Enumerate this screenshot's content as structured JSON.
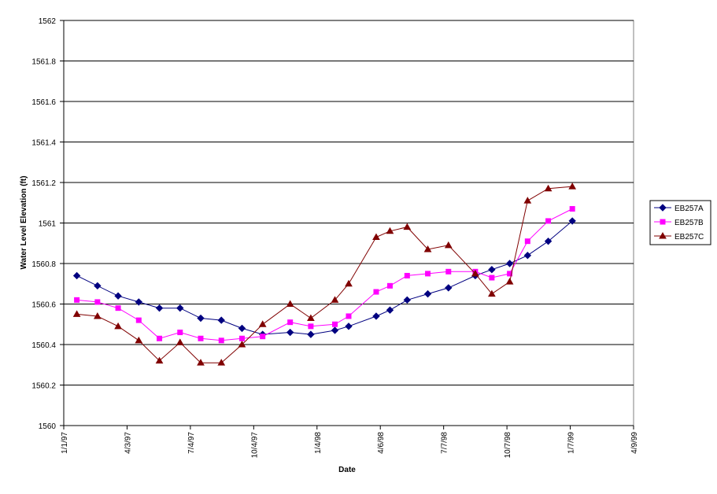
{
  "chart_data": {
    "type": "line",
    "title": "",
    "xlabel": "Date",
    "ylabel": "Water Level Elevation (ft)",
    "ylim": [
      1560,
      1562
    ],
    "yticks": [
      1560,
      1560.2,
      1560.4,
      1560.6,
      1560.8,
      1561,
      1561.2,
      1561.4,
      1561.6,
      1561.8,
      1562
    ],
    "ytick_labels": [
      "1560",
      "1560.2",
      "1560.4",
      "1560.6",
      "1560.8",
      "1561",
      "1561.2",
      "1561.4",
      "1561.6",
      "1561.8",
      "1562"
    ],
    "xlim": [
      "1997-01-01",
      "1999-04-09"
    ],
    "xticks": [
      "1997-01-01",
      "1997-04-03",
      "1997-07-04",
      "1997-10-04",
      "1998-01-04",
      "1998-04-06",
      "1998-07-07",
      "1998-10-07",
      "1999-01-07",
      "1999-04-09"
    ],
    "xtick_labels": [
      "1/1/97",
      "4/3/97",
      "7/4/97",
      "10/4/97",
      "1/4/98",
      "4/6/98",
      "7/7/98",
      "10/7/98",
      "1/7/99",
      "4/9/99"
    ],
    "grid": "horizontal major",
    "legend": "right",
    "series": [
      {
        "name": "EB257A",
        "color": "#000080",
        "marker": "diamond",
        "x": [
          "1997-01-20",
          "1997-02-19",
          "1997-03-21",
          "1997-04-20",
          "1997-05-20",
          "1997-06-19",
          "1997-07-19",
          "1997-08-18",
          "1997-09-17",
          "1997-10-17",
          "1997-11-26",
          "1997-12-26",
          "1998-01-30",
          "1998-02-19",
          "1998-03-31",
          "1998-04-20",
          "1998-05-15",
          "1998-06-14",
          "1998-07-14",
          "1998-08-22",
          "1998-09-15",
          "1998-10-11",
          "1998-11-06",
          "1998-12-06",
          "1999-01-10"
        ],
        "y": [
          1560.74,
          1560.69,
          1560.64,
          1560.61,
          1560.58,
          1560.58,
          1560.53,
          1560.52,
          1560.48,
          1560.45,
          1560.46,
          1560.45,
          1560.47,
          1560.49,
          1560.54,
          1560.57,
          1560.62,
          1560.65,
          1560.68,
          1560.74,
          1560.77,
          1560.8,
          1560.84,
          1560.91,
          1561.01
        ]
      },
      {
        "name": "EB257B",
        "color": "#FF00FF",
        "marker": "square",
        "x": [
          "1997-01-20",
          "1997-02-19",
          "1997-03-21",
          "1997-04-20",
          "1997-05-20",
          "1997-06-19",
          "1997-07-19",
          "1997-08-18",
          "1997-09-17",
          "1997-10-17",
          "1997-11-26",
          "1997-12-26",
          "1998-01-30",
          "1998-02-19",
          "1998-03-31",
          "1998-04-20",
          "1998-05-15",
          "1998-06-14",
          "1998-07-14",
          "1998-08-22",
          "1998-09-15",
          "1998-10-11",
          "1998-11-06",
          "1998-12-06",
          "1999-01-10"
        ],
        "y": [
          1560.62,
          1560.61,
          1560.58,
          1560.52,
          1560.43,
          1560.46,
          1560.43,
          1560.42,
          1560.43,
          1560.44,
          1560.51,
          1560.49,
          1560.5,
          1560.54,
          1560.66,
          1560.69,
          1560.74,
          1560.75,
          1560.76,
          1560.76,
          1560.73,
          1560.75,
          1560.91,
          1561.01,
          1561.07
        ]
      },
      {
        "name": "EB257C",
        "color": "#800000",
        "marker": "triangle",
        "x": [
          "1997-01-20",
          "1997-02-19",
          "1997-03-21",
          "1997-04-20",
          "1997-05-20",
          "1997-06-19",
          "1997-07-19",
          "1997-08-18",
          "1997-09-17",
          "1997-10-17",
          "1997-11-26",
          "1997-12-26",
          "1998-01-30",
          "1998-02-19",
          "1998-03-31",
          "1998-04-20",
          "1998-05-15",
          "1998-06-14",
          "1998-07-14",
          "1998-08-22",
          "1998-09-15",
          "1998-10-11",
          "1998-11-06",
          "1998-12-06",
          "1999-01-10"
        ],
        "y": [
          1560.55,
          1560.54,
          1560.49,
          1560.42,
          1560.32,
          1560.41,
          1560.31,
          1560.31,
          1560.4,
          1560.5,
          1560.6,
          1560.53,
          1560.62,
          1560.7,
          1560.93,
          1560.96,
          1560.98,
          1560.87,
          1560.89,
          1560.75,
          1560.65,
          1560.71,
          1561.11,
          1561.17,
          1561.18
        ]
      }
    ]
  }
}
